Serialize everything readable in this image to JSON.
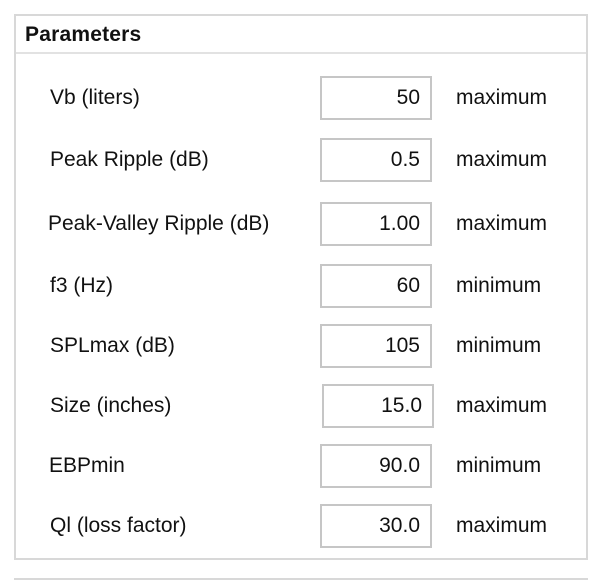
{
  "panel": {
    "title": "Parameters"
  },
  "params": [
    {
      "label": "Vb (liters)",
      "value": "50",
      "limit": "maximum"
    },
    {
      "label": "Peak Ripple (dB)",
      "value": "0.5",
      "limit": "maximum"
    },
    {
      "label": "Peak-Valley Ripple (dB)",
      "value": "1.00",
      "limit": "maximum"
    },
    {
      "label": "f3 (Hz)",
      "value": "60",
      "limit": "minimum"
    },
    {
      "label": "SPLmax (dB)",
      "value": "105",
      "limit": "minimum"
    },
    {
      "label": "Size (inches)",
      "value": "15.0",
      "limit": "maximum"
    },
    {
      "label": "EBPmin",
      "value": "90.0",
      "limit": "minimum"
    },
    {
      "label": "Ql (loss factor)",
      "value": "30.0",
      "limit": "maximum"
    }
  ]
}
